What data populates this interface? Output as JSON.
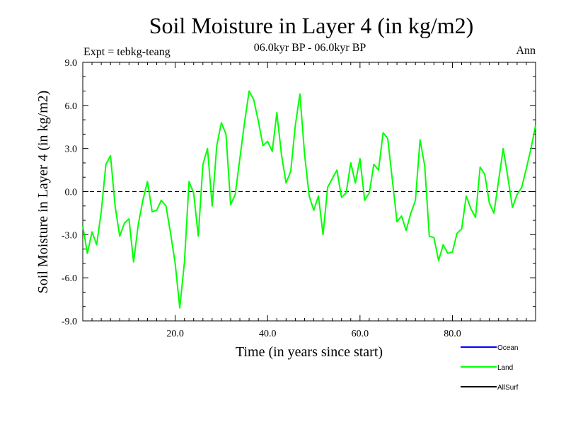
{
  "chart_data": {
    "type": "line",
    "title": "Soil Moisture in Layer 4 (in kg/m2)",
    "subtitle": "06.0kyr BP - 06.0kyr BP",
    "experiment": "Expt = tebkg-teang",
    "period": "Ann",
    "xlabel": "Time (in years since start)",
    "ylabel": "Soil Moisture in Layer 4 (in kg/m2)",
    "xlim": [
      0,
      98
    ],
    "ylim": [
      -9.0,
      9.0
    ],
    "xticks": [
      20,
      40,
      60,
      80
    ],
    "xtick_labels": [
      "20.0",
      "40.0",
      "60.0",
      "80.0"
    ],
    "yticks": [
      9,
      6,
      3,
      0,
      -3,
      -6,
      -9
    ],
    "ytick_labels": [
      "9.0",
      "6.0",
      "3.0",
      "0.0",
      "-3.0",
      "-6.0",
      "-9.0"
    ],
    "zero_line": true,
    "legend": [
      {
        "name": "Ocean",
        "color": "#0000ff"
      },
      {
        "name": "Land",
        "color": "#00ff00"
      },
      {
        "name": "AllSurf",
        "color": "#000000"
      }
    ],
    "series": [
      {
        "name": "Land",
        "color": "#00ff00",
        "x": [
          0,
          1,
          2,
          3,
          4,
          5,
          6,
          7,
          8,
          9,
          10,
          11,
          12,
          13,
          14,
          15,
          16,
          17,
          18,
          19,
          20,
          21,
          22,
          23,
          24,
          25,
          26,
          27,
          28,
          29,
          30,
          31,
          32,
          33,
          34,
          35,
          36,
          37,
          38,
          39,
          40,
          41,
          42,
          43,
          44,
          45,
          46,
          47,
          48,
          49,
          50,
          51,
          52,
          53,
          54,
          55,
          56,
          57,
          58,
          59,
          60,
          61,
          62,
          63,
          64,
          65,
          66,
          67,
          68,
          69,
          70,
          71,
          72,
          73,
          74,
          75,
          76,
          77,
          78,
          79,
          80,
          81,
          82,
          83,
          84,
          85,
          86,
          87,
          88,
          89,
          90,
          91,
          92,
          93,
          94,
          95,
          96,
          97,
          98
        ],
        "values": [
          -2.4,
          -4.3,
          -2.8,
          -3.7,
          -1.4,
          1.9,
          2.5,
          -1.0,
          -3.1,
          -2.2,
          -1.9,
          -4.9,
          -2.3,
          -0.6,
          0.7,
          -1.4,
          -1.3,
          -0.6,
          -1.0,
          -2.9,
          -5.0,
          -8.1,
          -4.9,
          0.7,
          -0.1,
          -3.1,
          1.9,
          3.0,
          -1.0,
          3.2,
          4.8,
          4.0,
          -0.9,
          -0.2,
          2.3,
          4.8,
          7.0,
          6.4,
          4.9,
          3.2,
          3.5,
          2.8,
          5.5,
          2.6,
          0.6,
          1.4,
          4.6,
          6.8,
          2.6,
          -0.3,
          -1.3,
          -0.3,
          -3.0,
          0.3,
          0.9,
          1.5,
          -0.4,
          -0.1,
          2.0,
          0.6,
          2.3,
          -0.6,
          -0.1,
          1.9,
          1.5,
          4.1,
          3.7,
          0.8,
          -2.1,
          -1.7,
          -2.7,
          -1.5,
          -0.6,
          3.6,
          1.8,
          -3.1,
          -3.2,
          -4.8,
          -3.7,
          -4.3,
          -4.2,
          -2.9,
          -2.6,
          -0.3,
          -1.2,
          -1.8,
          1.7,
          1.2,
          -0.8,
          -1.5,
          0.8,
          3.0,
          1.0,
          -1.1,
          -0.2,
          0.3,
          1.6,
          3.0,
          4.6
        ]
      }
    ]
  }
}
